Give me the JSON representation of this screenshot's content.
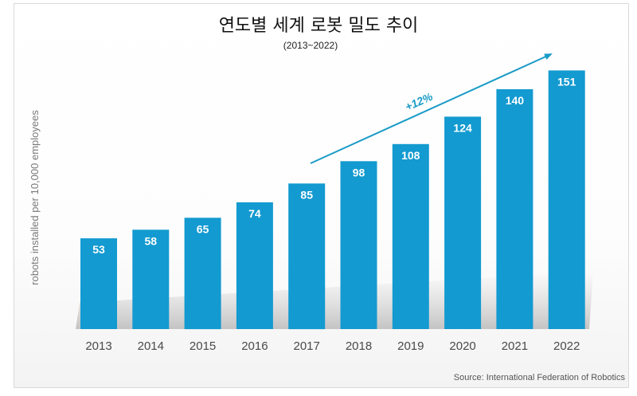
{
  "chart_data": {
    "type": "bar",
    "title": "연도별 세계 로봇 밀도 추이",
    "subtitle": "(2013~2022)",
    "ylabel": "robots installed per 10,000 employees",
    "xlabel": "",
    "categories": [
      "2013",
      "2014",
      "2015",
      "2016",
      "2017",
      "2018",
      "2019",
      "2020",
      "2021",
      "2022"
    ],
    "values": [
      53,
      58,
      65,
      74,
      85,
      98,
      108,
      124,
      140,
      151
    ],
    "ylim": [
      0,
      160
    ],
    "grid": false,
    "legend": "none",
    "annotation": {
      "text": "+12%",
      "from": "2017",
      "to": "2022"
    },
    "source": "Source: International Federation of Robotics",
    "colors": {
      "bar": "#139ad0",
      "bar_label": "#ffffff",
      "arrow": "#1a9bc7",
      "tick": "#4a4a4a"
    }
  }
}
